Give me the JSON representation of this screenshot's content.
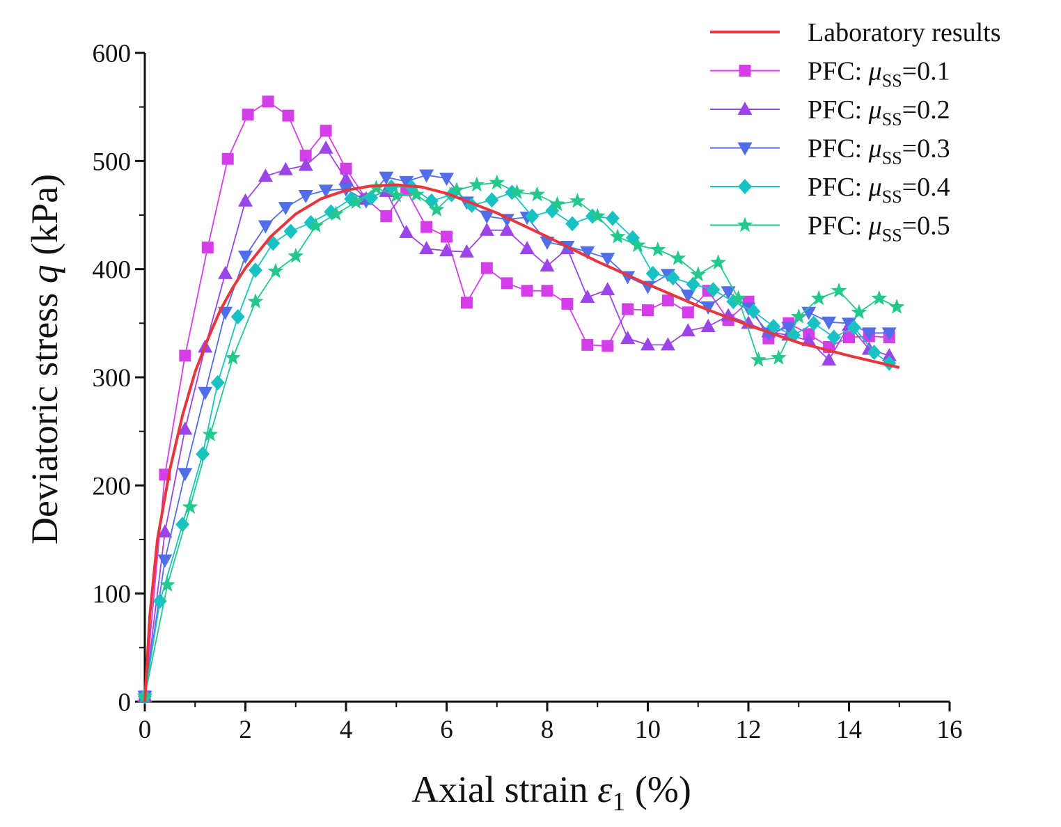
{
  "chart_data": {
    "type": "line",
    "xlabel": {
      "prefix": "Axial strain",
      "symbol": "ε",
      "subscript": "1",
      "suffix": "(%)"
    },
    "ylabel": {
      "prefix": "Deviatoric stress",
      "symbol": "q",
      "suffix": "(kPa)"
    },
    "xlim": [
      0,
      16
    ],
    "ylim": [
      0,
      600
    ],
    "xticks": [
      "0",
      "2",
      "4",
      "6",
      "8",
      "10",
      "12",
      "14",
      "16"
    ],
    "yticks": [
      "0",
      "100",
      "200",
      "300",
      "400",
      "500",
      "600"
    ],
    "grid": false,
    "legend_position": "top-right",
    "series": [
      {
        "name": "Laboratory results",
        "label_main": "Laboratory results",
        "color": "#e8363c",
        "marker": "none",
        "x": [
          0,
          0.1,
          0.25,
          0.5,
          0.75,
          1,
          1.25,
          1.5,
          1.75,
          2,
          2.5,
          3,
          3.5,
          4,
          4.5,
          5,
          5.5,
          6,
          7,
          8,
          9,
          10,
          11,
          12,
          13,
          14,
          15
        ],
        "y": [
          0,
          80,
          150,
          215,
          265,
          305,
          335,
          362,
          383,
          401,
          430,
          451,
          465,
          473,
          477,
          478,
          476,
          470,
          452,
          430,
          407,
          386,
          366,
          348,
          332,
          320,
          309
        ]
      },
      {
        "name": "PFC: μSS=0.1",
        "label_prefix": "PFC: ",
        "label_symbol": "μ",
        "label_sub": "SS",
        "label_value": "=0.1",
        "color": "#d43ee8",
        "marker": "square",
        "x": [
          0,
          0.4,
          0.8,
          1.25,
          1.65,
          2.05,
          2.45,
          2.85,
          3.2,
          3.6,
          4.0,
          4.4,
          4.8,
          5.2,
          5.6,
          6.0,
          6.4,
          6.8,
          7.2,
          7.6,
          8.0,
          8.4,
          8.8,
          9.2,
          9.6,
          10.0,
          10.4,
          10.8,
          11.2,
          11.6,
          12.0,
          12.4,
          12.8,
          13.2,
          13.6,
          14.0,
          14.4,
          14.8
        ],
        "y": [
          5,
          210,
          320,
          420,
          502,
          543,
          555,
          542,
          505,
          528,
          493,
          465,
          449,
          473,
          439,
          430,
          369,
          401,
          387,
          380,
          380,
          368,
          330,
          329,
          363,
          362,
          371,
          360,
          380,
          353,
          370,
          336,
          350,
          340,
          328,
          337,
          338,
          337
        ]
      },
      {
        "name": "PFC: μSS=0.2",
        "label_prefix": "PFC: ",
        "label_symbol": "μ",
        "label_sub": "SS",
        "label_value": "=0.2",
        "color": "#9b45e8",
        "marker": "triangle-up",
        "x": [
          0,
          0.4,
          0.8,
          1.2,
          1.6,
          2.0,
          2.4,
          2.8,
          3.2,
          3.6,
          4.0,
          4.4,
          4.8,
          5.2,
          5.6,
          6.0,
          6.4,
          6.8,
          7.2,
          7.6,
          8.0,
          8.4,
          8.8,
          9.2,
          9.6,
          10.0,
          10.4,
          10.8,
          11.2,
          11.6,
          12.0,
          12.4,
          12.8,
          13.2,
          13.6,
          14.0,
          14.4,
          14.8
        ],
        "y": [
          5,
          157,
          252,
          328,
          396,
          463,
          486,
          492,
          496,
          512,
          483,
          465,
          472,
          434,
          419,
          417,
          416,
          436,
          436,
          419,
          403,
          419,
          374,
          381,
          336,
          330,
          330,
          343,
          347,
          357,
          350,
          342,
          339,
          334,
          316,
          348,
          326,
          320
        ]
      },
      {
        "name": "PFC: μSS=0.3",
        "label_prefix": "PFC: ",
        "label_symbol": "μ",
        "label_sub": "SS",
        "label_value": "=0.3",
        "color": "#4f6ee8",
        "marker": "triangle-down",
        "x": [
          0,
          0.4,
          0.8,
          1.2,
          1.6,
          2.0,
          2.4,
          2.8,
          3.2,
          3.6,
          4.0,
          4.4,
          4.8,
          5.2,
          5.6,
          6.0,
          6.4,
          6.8,
          7.2,
          7.6,
          8.0,
          8.4,
          8.8,
          9.2,
          9.6,
          10.0,
          10.4,
          10.8,
          11.2,
          11.6,
          12.0,
          12.4,
          12.8,
          13.2,
          13.6,
          14.0,
          14.4,
          14.8
        ],
        "y": [
          5,
          131,
          211,
          286,
          360,
          412,
          440,
          457,
          468,
          473,
          474,
          463,
          485,
          481,
          487,
          484,
          462,
          449,
          446,
          448,
          425,
          421,
          416,
          410,
          393,
          384,
          395,
          376,
          365,
          379,
          364,
          341,
          346,
          360,
          351,
          350,
          341,
          341
        ]
      },
      {
        "name": "PFC: μSS=0.4",
        "label_prefix": "PFC: ",
        "label_symbol": "μ",
        "label_sub": "SS",
        "label_value": "=0.4",
        "color": "#19c2c2",
        "marker": "diamond",
        "x": [
          0,
          0.3,
          0.75,
          1.15,
          1.45,
          1.85,
          2.2,
          2.55,
          2.9,
          3.3,
          3.7,
          4.1,
          4.5,
          4.9,
          5.3,
          5.7,
          6.1,
          6.5,
          6.9,
          7.3,
          7.7,
          8.1,
          8.5,
          8.9,
          9.3,
          9.7,
          10.1,
          10.5,
          10.9,
          11.3,
          11.7,
          12.1,
          12.5,
          12.9,
          13.3,
          13.7,
          14.1,
          14.5,
          14.8
        ],
        "y": [
          5,
          93,
          164,
          229,
          295,
          356,
          399,
          424,
          435,
          443,
          453,
          465,
          466,
          476,
          476,
          463,
          469,
          459,
          464,
          471,
          449,
          454,
          442,
          449,
          447,
          429,
          396,
          392,
          386,
          381,
          370,
          361,
          347,
          339,
          350,
          337,
          346,
          323,
          313
        ]
      },
      {
        "name": "PFC: μSS=0.5",
        "label_prefix": "PFC: ",
        "label_symbol": "μ",
        "label_sub": "SS",
        "label_value": "=0.5",
        "color": "#22c98a",
        "marker": "star",
        "x": [
          0,
          0.45,
          0.9,
          1.3,
          1.75,
          2.2,
          2.6,
          3.0,
          3.4,
          3.8,
          4.2,
          4.6,
          5.0,
          5.4,
          5.8,
          6.2,
          6.6,
          7.0,
          7.4,
          7.8,
          8.2,
          8.6,
          9.0,
          9.4,
          9.8,
          10.2,
          10.6,
          11.0,
          11.4,
          11.8,
          12.2,
          12.6,
          13.0,
          13.4,
          13.8,
          14.2,
          14.6,
          14.95
        ],
        "y": [
          5,
          108,
          180,
          247,
          318,
          370,
          398,
          412,
          440,
          451,
          462,
          475,
          468,
          469,
          455,
          473,
          478,
          480,
          471,
          469,
          460,
          463,
          449,
          430,
          422,
          418,
          410,
          395,
          406,
          373,
          316,
          318,
          356,
          373,
          380,
          360,
          373,
          365
        ]
      }
    ]
  }
}
